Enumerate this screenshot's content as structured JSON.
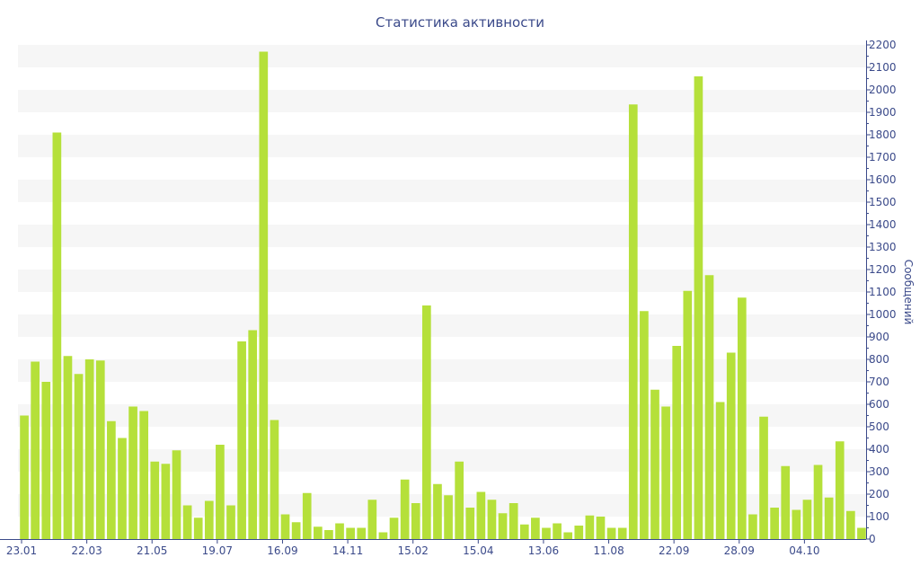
{
  "chart_data": {
    "type": "bar",
    "title": "Статистика активности",
    "xlabel": "",
    "ylabel": "Сообщений",
    "ylim": [
      0,
      2200
    ],
    "y_ticks": [
      0,
      100,
      200,
      300,
      400,
      500,
      600,
      700,
      800,
      900,
      1000,
      1100,
      1200,
      1300,
      1400,
      1500,
      1600,
      1700,
      1800,
      1900,
      2000,
      2100,
      2200
    ],
    "x_tick_labels": [
      {
        "label": "23.01",
        "index": 0
      },
      {
        "label": "22.03",
        "index": 6
      },
      {
        "label": "21.05",
        "index": 12
      },
      {
        "label": "19.07",
        "index": 18
      },
      {
        "label": "16.09",
        "index": 24
      },
      {
        "label": "14.11",
        "index": 30
      },
      {
        "label": "15.02",
        "index": 36
      },
      {
        "label": "15.04",
        "index": 42
      },
      {
        "label": "13.06",
        "index": 48
      },
      {
        "label": "11.08",
        "index": 54
      },
      {
        "label": "22.09",
        "index": 60
      },
      {
        "label": "28.09",
        "index": 66
      },
      {
        "label": "04.10",
        "index": 72
      }
    ],
    "values": [
      550,
      790,
      700,
      1810,
      815,
      735,
      800,
      795,
      525,
      450,
      590,
      570,
      345,
      335,
      395,
      150,
      95,
      170,
      420,
      150,
      880,
      930,
      2170,
      530,
      110,
      75,
      205,
      55,
      40,
      70,
      50,
      50,
      175,
      30,
      95,
      265,
      160,
      1040,
      245,
      195,
      345,
      140,
      210,
      175,
      115,
      160,
      65,
      95,
      50,
      70,
      30,
      60,
      105,
      100,
      50,
      50,
      1935,
      1015,
      665,
      590,
      860,
      1105,
      2060,
      1175,
      610,
      830,
      1075,
      110,
      545,
      140,
      325,
      130,
      175,
      330,
      185,
      435,
      125,
      50
    ],
    "grid": "horizontal bands",
    "y_axis_side": "right",
    "colors": {
      "bar": "#b5e03a",
      "band": "#f6f6f6",
      "axis": "#3b4a8a",
      "text": "#3b4a8a"
    }
  }
}
